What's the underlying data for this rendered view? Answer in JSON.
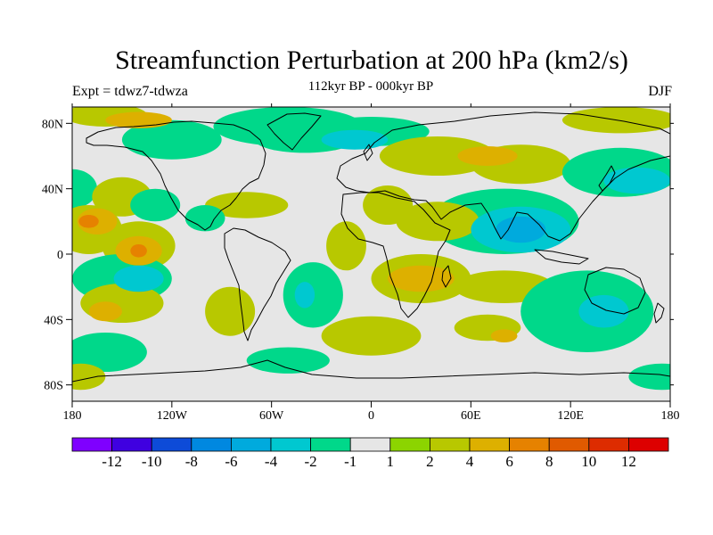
{
  "header": {
    "title": "Streamfunction Perturbation at 200 hPa (km2/s)",
    "subtitle": "112kyr BP - 000kyr BP",
    "left_label": "Expt = tdwz7-tdwza",
    "right_label": "DJF"
  },
  "map": {
    "projection": "cylindrical-equidistant",
    "lon_range": [
      -180,
      180
    ],
    "lat_range": [
      -90,
      90
    ],
    "lat_ticks": [
      {
        "value": 80,
        "label": "80N"
      },
      {
        "value": 40,
        "label": "40N"
      },
      {
        "value": 0,
        "label": "0"
      },
      {
        "value": -40,
        "label": "40S"
      },
      {
        "value": -80,
        "label": "80S"
      }
    ],
    "lon_ticks": [
      {
        "value": -180,
        "label": "180"
      },
      {
        "value": -120,
        "label": "120W"
      },
      {
        "value": -60,
        "label": "60W"
      },
      {
        "value": 0,
        "label": "0"
      },
      {
        "value": 60,
        "label": "60E"
      },
      {
        "value": 120,
        "label": "120E"
      },
      {
        "value": 180,
        "label": "180"
      }
    ],
    "background_color": "#e6e6e6",
    "anomalies": [
      {
        "lon": -160,
        "lat": 85,
        "rx": 25,
        "ry": 7,
        "v": 2
      },
      {
        "lon": -140,
        "lat": 82,
        "rx": 20,
        "ry": 5,
        "v": 4
      },
      {
        "lon": 150,
        "lat": 82,
        "rx": 35,
        "ry": 8,
        "v": 2
      },
      {
        "lon": -120,
        "lat": 70,
        "rx": 30,
        "ry": 12,
        "v": -2
      },
      {
        "lon": -50,
        "lat": 78,
        "rx": 45,
        "ry": 12,
        "v": -2
      },
      {
        "lon": -40,
        "lat": 70,
        "rx": 30,
        "ry": 8,
        "v": -2
      },
      {
        "lon": 0,
        "lat": 75,
        "rx": 35,
        "ry": 9,
        "v": -2
      },
      {
        "lon": -10,
        "lat": 70,
        "rx": 20,
        "ry": 6,
        "v": -4
      },
      {
        "lon": 40,
        "lat": 60,
        "rx": 35,
        "ry": 12,
        "v": 2
      },
      {
        "lon": 90,
        "lat": 55,
        "rx": 30,
        "ry": 12,
        "v": 2
      },
      {
        "lon": 70,
        "lat": 60,
        "rx": 18,
        "ry": 6,
        "v": 4
      },
      {
        "lon": 150,
        "lat": 50,
        "rx": 35,
        "ry": 15,
        "v": -2
      },
      {
        "lon": 160,
        "lat": 45,
        "rx": 20,
        "ry": 8,
        "v": -4
      },
      {
        "lon": -180,
        "lat": 40,
        "rx": 15,
        "ry": 12,
        "v": -2
      },
      {
        "lon": 10,
        "lat": 30,
        "rx": 15,
        "ry": 12,
        "v": 2
      },
      {
        "lon": -150,
        "lat": 35,
        "rx": 18,
        "ry": 12,
        "v": 2
      },
      {
        "lon": -130,
        "lat": 30,
        "rx": 15,
        "ry": 10,
        "v": -2
      },
      {
        "lon": -75,
        "lat": 30,
        "rx": 25,
        "ry": 8,
        "v": 2
      },
      {
        "lon": -100,
        "lat": 22,
        "rx": 12,
        "ry": 8,
        "v": -2
      },
      {
        "lon": -170,
        "lat": 15,
        "rx": 20,
        "ry": 15,
        "v": 2
      },
      {
        "lon": -165,
        "lat": 20,
        "rx": 12,
        "ry": 8,
        "v": 4
      },
      {
        "lon": -170,
        "lat": 20,
        "rx": 6,
        "ry": 4,
        "v": 6
      },
      {
        "lon": -140,
        "lat": 5,
        "rx": 22,
        "ry": 15,
        "v": 2
      },
      {
        "lon": -140,
        "lat": 2,
        "rx": 14,
        "ry": 9,
        "v": 4
      },
      {
        "lon": -140,
        "lat": 2,
        "rx": 5,
        "ry": 4,
        "v": 6
      },
      {
        "lon": -150,
        "lat": -15,
        "rx": 30,
        "ry": 15,
        "v": -2
      },
      {
        "lon": -140,
        "lat": -15,
        "rx": 15,
        "ry": 8,
        "v": -4
      },
      {
        "lon": -150,
        "lat": -30,
        "rx": 25,
        "ry": 12,
        "v": 2
      },
      {
        "lon": -160,
        "lat": -35,
        "rx": 10,
        "ry": 6,
        "v": 4
      },
      {
        "lon": -85,
        "lat": -35,
        "rx": 15,
        "ry": 15,
        "v": 2
      },
      {
        "lon": -35,
        "lat": -25,
        "rx": 18,
        "ry": 20,
        "v": -2
      },
      {
        "lon": -40,
        "lat": -25,
        "rx": 6,
        "ry": 8,
        "v": -4
      },
      {
        "lon": -15,
        "lat": 5,
        "rx": 12,
        "ry": 15,
        "v": 2
      },
      {
        "lon": 30,
        "lat": -15,
        "rx": 30,
        "ry": 15,
        "v": 2
      },
      {
        "lon": 30,
        "lat": -15,
        "rx": 20,
        "ry": 8,
        "v": 4
      },
      {
        "lon": 80,
        "lat": 20,
        "rx": 45,
        "ry": 20,
        "v": -2
      },
      {
        "lon": 90,
        "lat": 15,
        "rx": 30,
        "ry": 14,
        "v": -4
      },
      {
        "lon": 90,
        "lat": 15,
        "rx": 15,
        "ry": 8,
        "v": -6
      },
      {
        "lon": 40,
        "lat": 20,
        "rx": 25,
        "ry": 12,
        "v": 2
      },
      {
        "lon": 80,
        "lat": -20,
        "rx": 30,
        "ry": 10,
        "v": 2
      },
      {
        "lon": 70,
        "lat": -45,
        "rx": 20,
        "ry": 8,
        "v": 2
      },
      {
        "lon": 80,
        "lat": -50,
        "rx": 8,
        "ry": 4,
        "v": 4
      },
      {
        "lon": 130,
        "lat": -35,
        "rx": 40,
        "ry": 25,
        "v": -2
      },
      {
        "lon": 140,
        "lat": -35,
        "rx": 15,
        "ry": 10,
        "v": -4
      },
      {
        "lon": -160,
        "lat": -60,
        "rx": 25,
        "ry": 12,
        "v": -2
      },
      {
        "lon": -50,
        "lat": -65,
        "rx": 25,
        "ry": 8,
        "v": -2
      },
      {
        "lon": 0,
        "lat": -50,
        "rx": 30,
        "ry": 12,
        "v": 2
      },
      {
        "lon": 175,
        "lat": -75,
        "rx": 20,
        "ry": 8,
        "v": -2
      },
      {
        "lon": -175,
        "lat": -75,
        "rx": 15,
        "ry": 8,
        "v": 2
      }
    ]
  },
  "colorbar": {
    "colors": [
      "#7f00ff",
      "#3f00e0",
      "#0d4bd8",
      "#0088e0",
      "#00aadd",
      "#00c8d0",
      "#00d88a",
      "#e6e6e6",
      "#8cd400",
      "#b8c800",
      "#ddb000",
      "#e68200",
      "#e05a00",
      "#dd2c00",
      "#dd0000"
    ],
    "labels": [
      "-12",
      "-10",
      "-8",
      "-6",
      "-4",
      "-2",
      "-1",
      "1",
      "2",
      "4",
      "6",
      "8",
      "10",
      "12"
    ],
    "levels": [
      -12,
      -10,
      -8,
      -6,
      -4,
      -2,
      -1,
      1,
      2,
      4,
      6,
      8,
      10,
      12
    ]
  }
}
